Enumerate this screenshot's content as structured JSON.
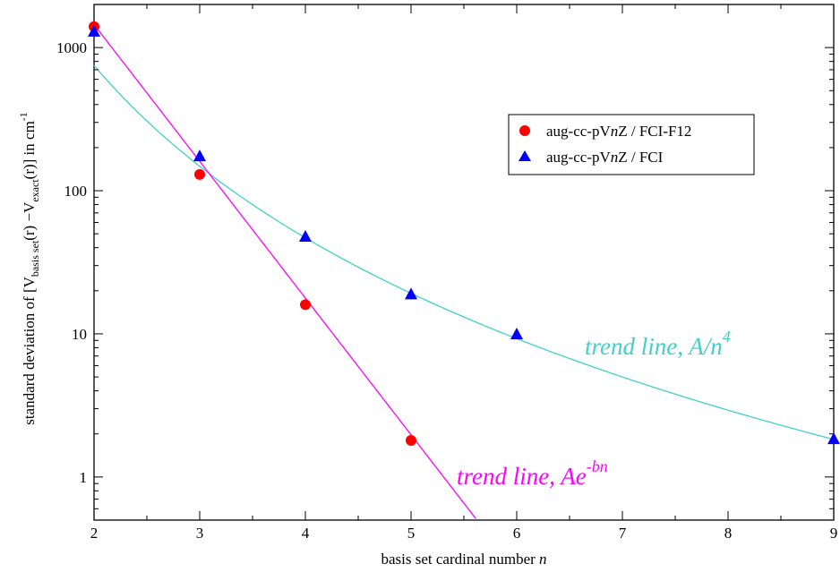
{
  "chart_data": {
    "type": "scatter",
    "x_axis": {
      "label_prefix": "basis set cardinal number ",
      "label_var": "n",
      "range": [
        2,
        9
      ],
      "ticks": [
        2,
        3,
        4,
        5,
        6,
        7,
        8,
        9
      ]
    },
    "y_axis": {
      "scale": "log",
      "range": [
        0.5,
        2000
      ],
      "ticks": [
        1,
        10,
        100,
        1000
      ],
      "label_parts": {
        "pre": "standard deviation of  [V",
        "sub1": "basis set",
        "mid": "(r) −V",
        "sub2": "exact",
        "post": "(r)]  in cm",
        "sup": "-1"
      }
    },
    "series": [
      {
        "name_parts": [
          "aug-cc-pV",
          "n",
          "Z / FCI-F12"
        ],
        "marker": "circle",
        "color": "#ff0000",
        "x": [
          2,
          3,
          4,
          5
        ],
        "y": [
          1400,
          130,
          16,
          1.8
        ]
      },
      {
        "name_parts": [
          "aug-cc-pV",
          "n",
          "Z / FCI"
        ],
        "marker": "triangle",
        "color": "#0000ff",
        "x": [
          2,
          3,
          4,
          5,
          6,
          9
        ],
        "y": [
          1300,
          175,
          48,
          19,
          10,
          1.85
        ]
      }
    ],
    "trend_lines": [
      {
        "kind": "power",
        "A": 12000,
        "power": 4,
        "color": "#40d0c8",
        "x_range": [
          2,
          9
        ],
        "label_main": "trend line, A/n",
        "label_sup": "4"
      },
      {
        "kind": "exponential",
        "A": 118000,
        "b": 2.2,
        "color": "#ff00ff",
        "x_range": [
          2,
          5.63
        ],
        "label_main": "trend line, Ae",
        "label_sup": "-bn"
      }
    ],
    "legend": {
      "position": "top-right",
      "boxed": true
    },
    "grid": false
  }
}
